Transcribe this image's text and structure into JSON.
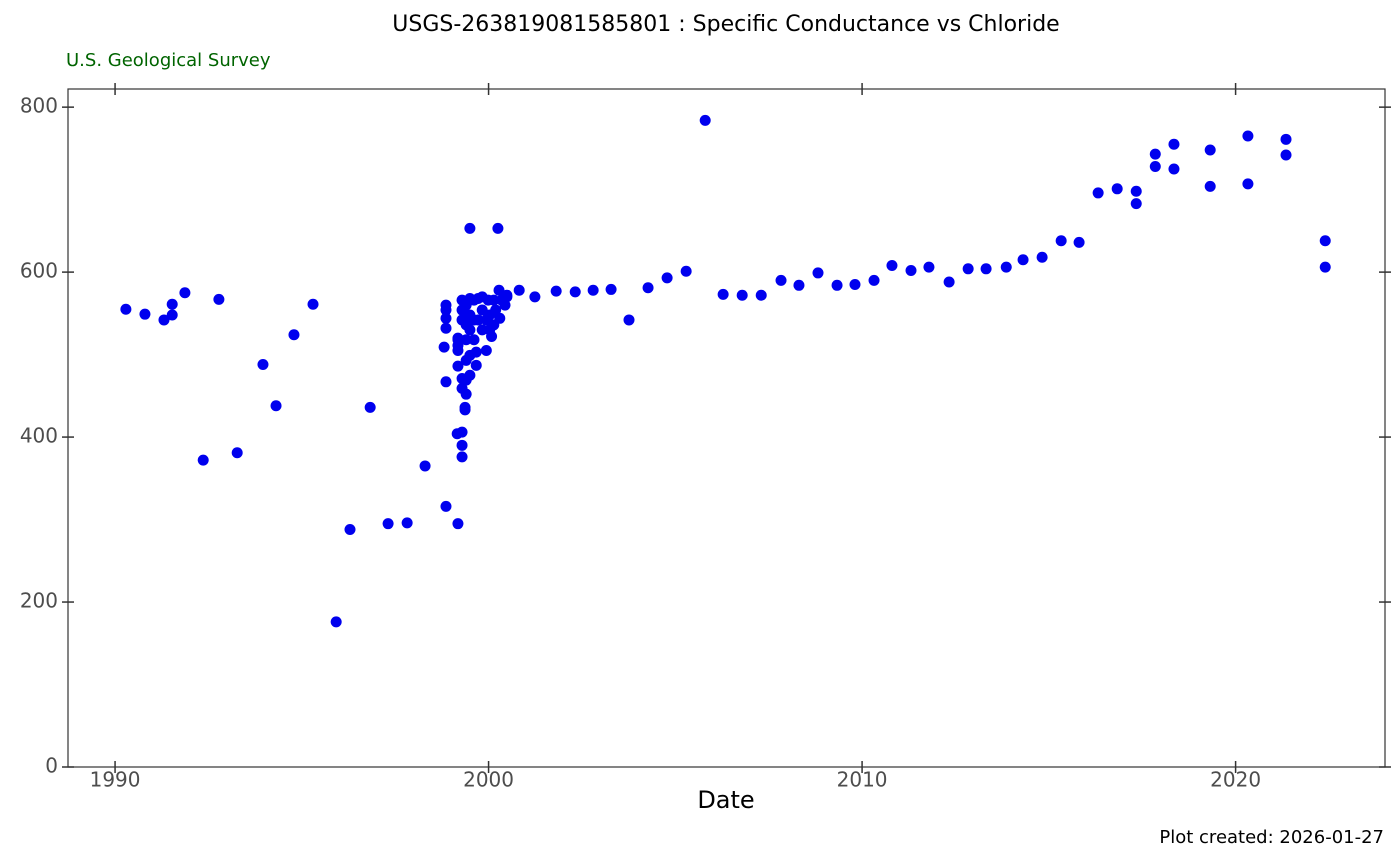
{
  "chart_data": {
    "type": "scatter",
    "title": "USGS-263819081585801 : Specific Conductance vs Chloride",
    "subtitle": "U.S. Geological Survey",
    "caption": "Plot created: 2026-01-27",
    "x_label": "Date",
    "color": "#0000ee",
    "subtitle_color": "#006400",
    "xlim": [
      1988.74,
      2024.0
    ],
    "ylim": [
      0,
      822
    ],
    "xticks": [
      1990,
      2000,
      2010,
      2020
    ],
    "yticks": [
      0,
      200,
      400,
      600,
      800
    ],
    "x": [
      1990.29,
      1990.8,
      1991.31,
      1991.53,
      1991.53,
      1991.87,
      1992.36,
      1992.78,
      1993.27,
      1993.96,
      1994.31,
      1994.79,
      1995.3,
      1995.92,
      1996.29,
      1996.83,
      1997.31,
      1997.82,
      1998.3,
      1998.81,
      1998.86,
      1998.86,
      1998.86,
      1998.86,
      1998.86,
      1998.86,
      1999.18,
      1999.16,
      1999.18,
      1999.18,
      1999.18,
      1999.18,
      1999.18,
      1999.29,
      1999.29,
      1999.29,
      1999.29,
      1999.29,
      1999.29,
      1999.29,
      1999.29,
      1999.37,
      1999.37,
      1999.4,
      1999.4,
      1999.4,
      1999.4,
      1999.4,
      1999.4,
      1999.5,
      1999.5,
      1999.5,
      1999.5,
      1999.5,
      1999.5,
      1999.61,
      1999.61,
      1999.61,
      1999.67,
      1999.67,
      1999.72,
      1999.72,
      1999.83,
      1999.83,
      1999.83,
      1999.94,
      1999.94,
      1999.99,
      2000.03,
      2000.03,
      2000.08,
      2000.14,
      2000.14,
      2000.19,
      2000.25,
      2000.28,
      2000.3,
      2000.35,
      2000.44,
      2000.49,
      2000.49,
      2000.82,
      2001.24,
      2001.81,
      2002.32,
      2002.8,
      2003.28,
      2003.76,
      2004.27,
      2004.78,
      2005.29,
      2005.8,
      2006.28,
      2006.79,
      2007.3,
      2007.83,
      2008.31,
      2008.82,
      2009.33,
      2009.81,
      2010.32,
      2010.8,
      2011.31,
      2011.79,
      2012.33,
      2012.84,
      2013.32,
      2013.86,
      2014.31,
      2014.82,
      2015.33,
      2015.81,
      2016.32,
      2016.83,
      2017.34,
      2017.34,
      2017.85,
      2017.85,
      2018.35,
      2018.35,
      2019.32,
      2019.32,
      2020.33,
      2020.33,
      2021.35,
      2021.35,
      2022.4,
      2022.4
    ],
    "values": [
      555,
      549,
      542,
      561,
      548,
      575,
      372,
      567,
      381,
      488,
      438,
      524,
      561,
      176,
      288,
      436,
      295,
      296,
      365,
      509,
      467,
      316,
      560,
      554,
      544,
      532,
      295,
      404,
      486,
      505,
      518,
      520,
      511,
      376,
      390,
      406,
      566,
      554,
      542,
      471,
      459,
      433,
      436,
      452,
      469,
      493,
      518,
      536,
      560,
      653,
      475,
      499,
      530,
      548,
      568,
      518,
      542,
      566,
      487,
      503,
      542,
      568,
      570,
      554,
      530,
      505,
      542,
      566,
      530,
      548,
      522,
      536,
      566,
      554,
      653,
      578,
      544,
      566,
      560,
      572,
      570,
      578,
      570,
      577,
      576,
      578,
      579,
      542,
      581,
      593,
      601,
      784,
      573,
      572,
      572,
      590,
      584,
      599,
      584,
      585,
      590,
      608,
      602,
      606,
      588,
      604,
      604,
      606,
      615,
      618,
      638,
      636,
      696,
      701,
      698,
      683,
      743,
      728,
      755,
      725,
      748,
      704,
      765,
      707,
      761,
      742,
      638,
      606
    ]
  }
}
